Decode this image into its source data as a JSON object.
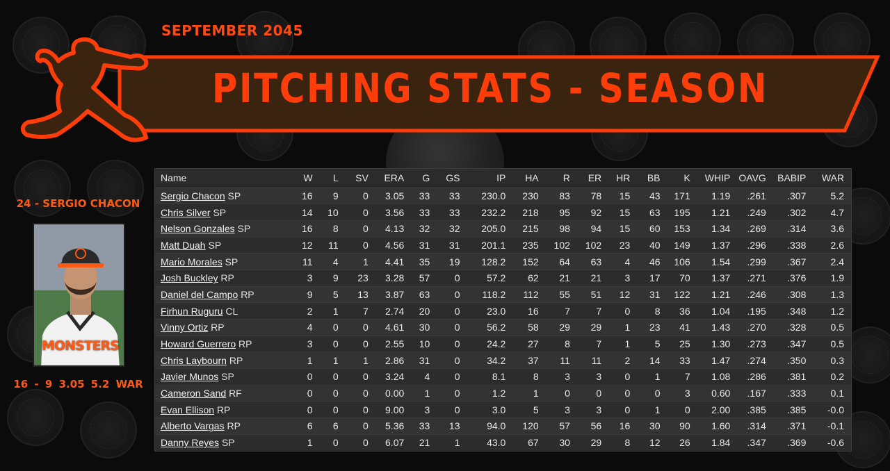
{
  "header": {
    "date": "SEPTEMBER  2045",
    "title": "PITCHING STATS - SEASON"
  },
  "colors": {
    "accent": "#ff3d0a",
    "banner_fill": "#3a2410"
  },
  "featured_player": {
    "name_line": "24 - SERGIO CHACON",
    "stat_line": "16 - 9  3.05  5.2 WAR",
    "jersey_text": "MONSTERS"
  },
  "table": {
    "headers": [
      "Name",
      "W",
      "L",
      "SV",
      "ERA",
      "G",
      "GS",
      "IP",
      "HA",
      "R",
      "ER",
      "HR",
      "BB",
      "K",
      "WHIP",
      "OAVG",
      "BABIP",
      "WAR"
    ],
    "rows": [
      {
        "name": "Sergio Chacon",
        "pos": "SP",
        "W": "16",
        "L": "9",
        "SV": "0",
        "ERA": "3.05",
        "G": "33",
        "GS": "33",
        "IP": "230.0",
        "HA": "230",
        "R": "83",
        "ER": "78",
        "HR": "15",
        "BB": "43",
        "K": "171",
        "WHIP": "1.19",
        "OAVG": ".261",
        "BABIP": ".307",
        "WAR": "5.2"
      },
      {
        "name": "Chris Silver",
        "pos": "SP",
        "W": "14",
        "L": "10",
        "SV": "0",
        "ERA": "3.56",
        "G": "33",
        "GS": "33",
        "IP": "232.2",
        "HA": "218",
        "R": "95",
        "ER": "92",
        "HR": "15",
        "BB": "63",
        "K": "195",
        "WHIP": "1.21",
        "OAVG": ".249",
        "BABIP": ".302",
        "WAR": "4.7"
      },
      {
        "name": "Nelson Gonzales",
        "pos": "SP",
        "W": "16",
        "L": "8",
        "SV": "0",
        "ERA": "4.13",
        "G": "32",
        "GS": "32",
        "IP": "205.0",
        "HA": "215",
        "R": "98",
        "ER": "94",
        "HR": "15",
        "BB": "60",
        "K": "153",
        "WHIP": "1.34",
        "OAVG": ".269",
        "BABIP": ".314",
        "WAR": "3.6"
      },
      {
        "name": "Matt Duah",
        "pos": "SP",
        "W": "12",
        "L": "11",
        "SV": "0",
        "ERA": "4.56",
        "G": "31",
        "GS": "31",
        "IP": "201.1",
        "HA": "235",
        "R": "102",
        "ER": "102",
        "HR": "23",
        "BB": "40",
        "K": "149",
        "WHIP": "1.37",
        "OAVG": ".296",
        "BABIP": ".338",
        "WAR": "2.6"
      },
      {
        "name": "Mario Morales",
        "pos": "SP",
        "W": "11",
        "L": "4",
        "SV": "1",
        "ERA": "4.41",
        "G": "35",
        "GS": "19",
        "IP": "128.2",
        "HA": "152",
        "R": "64",
        "ER": "63",
        "HR": "4",
        "BB": "46",
        "K": "106",
        "WHIP": "1.54",
        "OAVG": ".299",
        "BABIP": ".367",
        "WAR": "2.4"
      },
      {
        "name": "Josh Buckley",
        "pos": "RP",
        "W": "3",
        "L": "9",
        "SV": "23",
        "ERA": "3.28",
        "G": "57",
        "GS": "0",
        "IP": "57.2",
        "HA": "62",
        "R": "21",
        "ER": "21",
        "HR": "3",
        "BB": "17",
        "K": "70",
        "WHIP": "1.37",
        "OAVG": ".271",
        "BABIP": ".376",
        "WAR": "1.9"
      },
      {
        "name": "Daniel del Campo",
        "pos": "RP",
        "W": "9",
        "L": "5",
        "SV": "13",
        "ERA": "3.87",
        "G": "63",
        "GS": "0",
        "IP": "118.2",
        "HA": "112",
        "R": "55",
        "ER": "51",
        "HR": "12",
        "BB": "31",
        "K": "122",
        "WHIP": "1.21",
        "OAVG": ".246",
        "BABIP": ".308",
        "WAR": "1.3"
      },
      {
        "name": "Firhun Ruguru",
        "pos": "CL",
        "W": "2",
        "L": "1",
        "SV": "7",
        "ERA": "2.74",
        "G": "20",
        "GS": "0",
        "IP": "23.0",
        "HA": "16",
        "R": "7",
        "ER": "7",
        "HR": "0",
        "BB": "8",
        "K": "36",
        "WHIP": "1.04",
        "OAVG": ".195",
        "BABIP": ".348",
        "WAR": "1.2"
      },
      {
        "name": "Vinny Ortiz",
        "pos": "RP",
        "W": "4",
        "L": "0",
        "SV": "0",
        "ERA": "4.61",
        "G": "30",
        "GS": "0",
        "IP": "56.2",
        "HA": "58",
        "R": "29",
        "ER": "29",
        "HR": "1",
        "BB": "23",
        "K": "41",
        "WHIP": "1.43",
        "OAVG": ".270",
        "BABIP": ".328",
        "WAR": "0.5"
      },
      {
        "name": "Howard Guerrero",
        "pos": "RP",
        "W": "3",
        "L": "0",
        "SV": "0",
        "ERA": "2.55",
        "G": "10",
        "GS": "0",
        "IP": "24.2",
        "HA": "27",
        "R": "8",
        "ER": "7",
        "HR": "1",
        "BB": "5",
        "K": "25",
        "WHIP": "1.30",
        "OAVG": ".273",
        "BABIP": ".347",
        "WAR": "0.5"
      },
      {
        "name": "Chris Laybourn",
        "pos": "RP",
        "W": "1",
        "L": "1",
        "SV": "1",
        "ERA": "2.86",
        "G": "31",
        "GS": "0",
        "IP": "34.2",
        "HA": "37",
        "R": "11",
        "ER": "11",
        "HR": "2",
        "BB": "14",
        "K": "33",
        "WHIP": "1.47",
        "OAVG": ".274",
        "BABIP": ".350",
        "WAR": "0.3"
      },
      {
        "name": "Javier Munos",
        "pos": "SP",
        "W": "0",
        "L": "0",
        "SV": "0",
        "ERA": "3.24",
        "G": "4",
        "GS": "0",
        "IP": "8.1",
        "HA": "8",
        "R": "3",
        "ER": "3",
        "HR": "0",
        "BB": "1",
        "K": "7",
        "WHIP": "1.08",
        "OAVG": ".286",
        "BABIP": ".381",
        "WAR": "0.2"
      },
      {
        "name": "Cameron Sand",
        "pos": "RF",
        "W": "0",
        "L": "0",
        "SV": "0",
        "ERA": "0.00",
        "G": "1",
        "GS": "0",
        "IP": "1.2",
        "HA": "1",
        "R": "0",
        "ER": "0",
        "HR": "0",
        "BB": "0",
        "K": "3",
        "WHIP": "0.60",
        "OAVG": ".167",
        "BABIP": ".333",
        "WAR": "0.1"
      },
      {
        "name": "Evan Ellison",
        "pos": "RP",
        "W": "0",
        "L": "0",
        "SV": "0",
        "ERA": "9.00",
        "G": "3",
        "GS": "0",
        "IP": "3.0",
        "HA": "5",
        "R": "3",
        "ER": "3",
        "HR": "0",
        "BB": "1",
        "K": "0",
        "WHIP": "2.00",
        "OAVG": ".385",
        "BABIP": ".385",
        "WAR": "-0.0"
      },
      {
        "name": "Alberto Vargas",
        "pos": "RP",
        "W": "6",
        "L": "6",
        "SV": "0",
        "ERA": "5.36",
        "G": "33",
        "GS": "13",
        "IP": "94.0",
        "HA": "120",
        "R": "57",
        "ER": "56",
        "HR": "16",
        "BB": "30",
        "K": "90",
        "WHIP": "1.60",
        "OAVG": ".314",
        "BABIP": ".371",
        "WAR": "-0.1"
      },
      {
        "name": "Danny Reyes",
        "pos": "SP",
        "W": "1",
        "L": "0",
        "SV": "0",
        "ERA": "6.07",
        "G": "21",
        "GS": "1",
        "IP": "43.0",
        "HA": "67",
        "R": "30",
        "ER": "29",
        "HR": "8",
        "BB": "12",
        "K": "26",
        "WHIP": "1.84",
        "OAVG": ".347",
        "BABIP": ".369",
        "WAR": "-0.6"
      }
    ]
  }
}
